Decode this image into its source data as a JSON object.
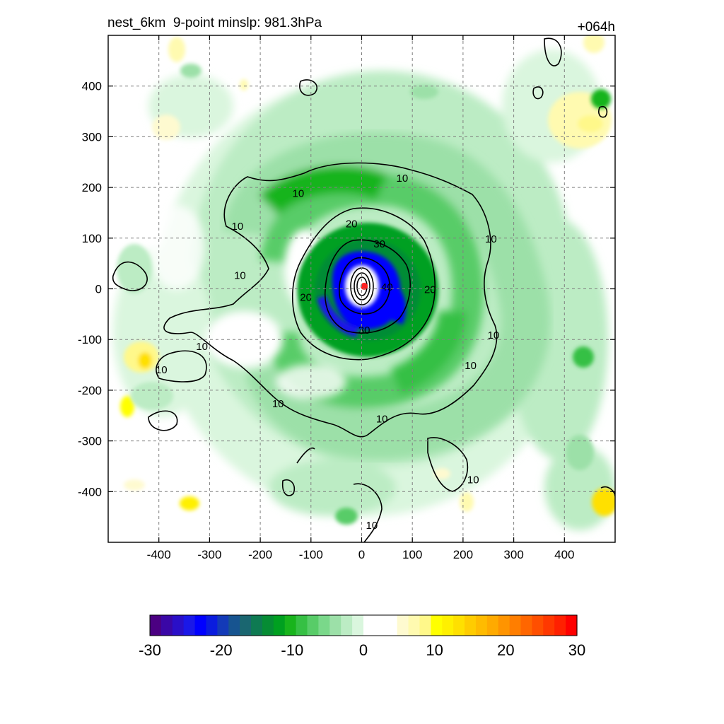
{
  "title_left": "nest_6km  9-point minslp: 981.3hPa",
  "title_right": "+064h",
  "chart_data": {
    "type": "heatmap",
    "title": "nest_6km  9-point minslp: 981.3hPa",
    "forecast_hour": "+064h",
    "xlim": [
      -500,
      500
    ],
    "ylim": [
      -500,
      500
    ],
    "x_ticks": [
      -400,
      -300,
      -200,
      -100,
      0,
      100,
      200,
      300,
      400
    ],
    "y_ticks": [
      400,
      300,
      200,
      100,
      0,
      -100,
      -200,
      -300,
      -400
    ],
    "grid": true,
    "center_marker": {
      "x": 5,
      "y": 5
    },
    "contours": {
      "levels": [
        10,
        20,
        30,
        40
      ],
      "labels": [
        {
          "text": "10",
          "x": -125,
          "y": 190
        },
        {
          "text": "10",
          "x": 80,
          "y": 220
        },
        {
          "text": "10",
          "x": -245,
          "y": 125
        },
        {
          "text": "10",
          "x": 255,
          "y": 100
        },
        {
          "text": "10",
          "x": -240,
          "y": 28
        },
        {
          "text": "10",
          "x": 260,
          "y": -90
        },
        {
          "text": "10",
          "x": -315,
          "y": -112
        },
        {
          "text": "10",
          "x": 215,
          "y": -150
        },
        {
          "text": "10",
          "x": -395,
          "y": -158
        },
        {
          "text": "10",
          "x": -165,
          "y": -225
        },
        {
          "text": "10",
          "x": 40,
          "y": -255
        },
        {
          "text": "10",
          "x": 220,
          "y": -375
        },
        {
          "text": "10",
          "x": 20,
          "y": -465
        },
        {
          "text": "20",
          "x": -20,
          "y": 130
        },
        {
          "text": "20",
          "x": -110,
          "y": -15
        },
        {
          "text": "20",
          "x": 135,
          "y": 0
        },
        {
          "text": "30",
          "x": 35,
          "y": 90
        },
        {
          "text": "30",
          "x": 5,
          "y": -80
        },
        {
          "text": "40",
          "x": 50,
          "y": 5
        }
      ]
    },
    "colorbar": {
      "min": -30,
      "max": 30,
      "ticks": [
        -30,
        -20,
        -10,
        0,
        10,
        20,
        30
      ],
      "tick_labels": [
        "-30",
        "-20",
        "-10",
        "0",
        "10",
        "20",
        "30"
      ],
      "colors": [
        "#4b0082",
        "#3a07a6",
        "#2a0fc8",
        "#1a18e8",
        "#0000ff",
        "#0a1cde",
        "#133ab8",
        "#175490",
        "#1a6670",
        "#0e7a52",
        "#068c34",
        "#00a020",
        "#18b41c",
        "#36c044",
        "#58cc68",
        "#7ad88a",
        "#9ce0a8",
        "#bcecc4",
        "#daf6de",
        "#ffffff",
        "#ffffff",
        "#ffffff",
        "#fefad0",
        "#fffab0",
        "#fff88a",
        "#ffff00",
        "#fff000",
        "#ffe000",
        "#ffcc00",
        "#ffbb00",
        "#ffaa00",
        "#ff9400",
        "#ff7e00",
        "#ff6600",
        "#ff4f00",
        "#ff3800",
        "#ff2000",
        "#ff0000"
      ]
    },
    "colors": {
      "strong_negative": "#0000ff",
      "negative": "#00a020",
      "weak_negative": "#bcecc4",
      "positive": "#ffff00",
      "marker": "#ff2020"
    }
  }
}
